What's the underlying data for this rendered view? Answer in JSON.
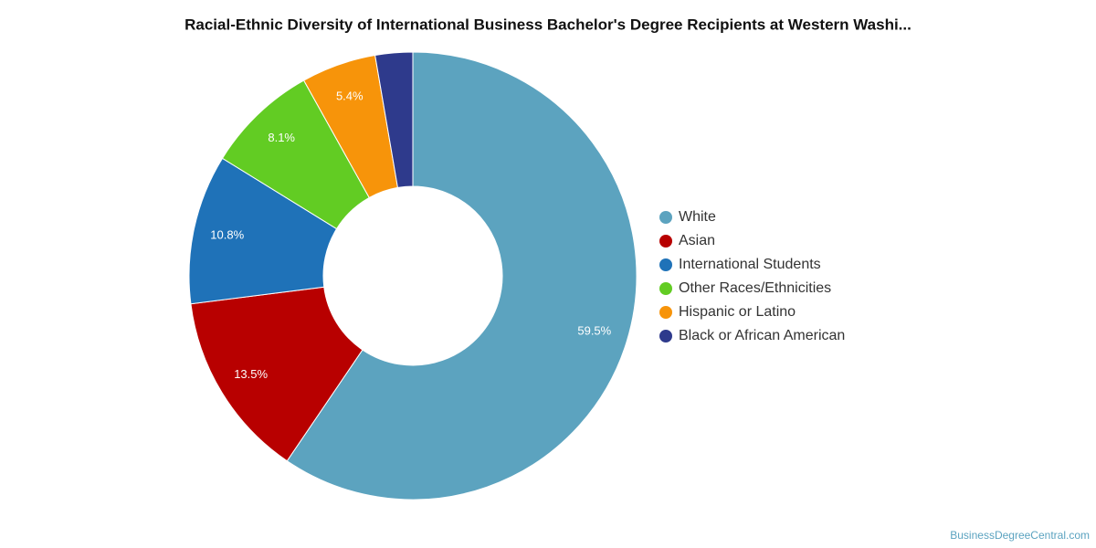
{
  "chart_data": {
    "type": "pie",
    "title": "Racial-Ethnic Diversity of International Business Bachelor's Degree Recipients at Western Washi...",
    "categories": [
      "White",
      "Asian",
      "International Students",
      "Other Races/Ethnicities",
      "Hispanic or Latino",
      "Black or African American"
    ],
    "values": [
      59.5,
      13.5,
      10.8,
      8.1,
      5.4,
      2.7
    ],
    "value_labels": [
      "59.5%",
      "13.5%",
      "10.8%",
      "8.1%",
      "5.4%",
      null
    ],
    "colors": [
      "#5ca3bf",
      "#b80000",
      "#1f72b8",
      "#62cc23",
      "#f7940a",
      "#2e3a8c"
    ],
    "legend": "right",
    "source": "BusinessDegreeCentral.com"
  }
}
